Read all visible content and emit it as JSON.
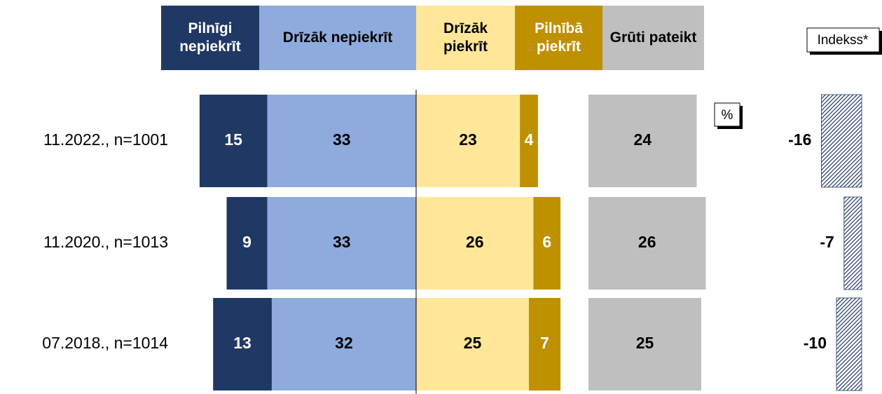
{
  "chart_data": {
    "type": "diverging-bar",
    "categories": [
      "11.2022., n=1001",
      "11.2020., n=1013",
      "07.2018., n=1014"
    ],
    "series": [
      {
        "name": "Pilnīgi nepiekrīt",
        "color": "#203864",
        "values": [
          15,
          9,
          13
        ]
      },
      {
        "name": "Drīzāk nepiekrīt",
        "color": "#8faadc",
        "values": [
          33,
          33,
          32
        ]
      },
      {
        "name": "Drīzāk piekrīt",
        "color": "#ffe699",
        "values": [
          23,
          26,
          25
        ]
      },
      {
        "name": "Pilnībā piekrīt",
        "color": "#bf9000",
        "values": [
          4,
          6,
          7
        ]
      },
      {
        "name": "Grūti pateikt",
        "color": "#bfbfbf",
        "values": [
          24,
          26,
          25
        ]
      }
    ],
    "unit_label": "%",
    "index": {
      "name": "Indekss*",
      "color": "#203864",
      "values": [
        -16,
        -7,
        -10
      ]
    }
  }
}
